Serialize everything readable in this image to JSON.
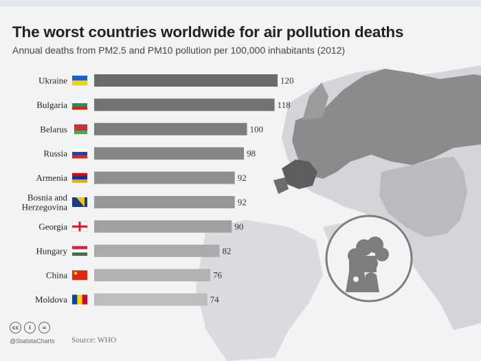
{
  "title": "The worst countries worldwide for air pollution deaths",
  "subtitle": "Annual deaths from PM2.5 and PM10 pollution per 100,000 inhabitants (2012)",
  "footer": {
    "handle": "@StatistaCharts",
    "source": "Source: WHO",
    "license_icons": [
      "cc",
      "i",
      "="
    ]
  },
  "illustration": {
    "icon": "factory-smoke-icon"
  },
  "colors": {
    "bar_darkest": "#6a6a6a",
    "bar_lightest": "#bdbdbd",
    "map_land": "#cfd1d4",
    "map_highlight": "#7a7a7a"
  },
  "chart_data": {
    "type": "bar",
    "orientation": "horizontal",
    "categories": [
      "Ukraine",
      "Bulgaria",
      "Belarus",
      "Russia",
      "Armenia",
      "Bosnia and Herzegovina",
      "Georgia",
      "Hungary",
      "China",
      "Moldova"
    ],
    "category_lines": [
      [
        "Ukraine"
      ],
      [
        "Bulgaria"
      ],
      [
        "Belarus"
      ],
      [
        "Russia"
      ],
      [
        "Armenia"
      ],
      [
        "Bosnia and",
        "Herzegovina"
      ],
      [
        "Georgia"
      ],
      [
        "Hungary"
      ],
      [
        "China"
      ],
      [
        "Moldova"
      ]
    ],
    "flags": [
      "ukraine-flag-icon",
      "bulgaria-flag-icon",
      "belarus-flag-icon",
      "russia-flag-icon",
      "armenia-flag-icon",
      "bosnia-flag-icon",
      "georgia-flag-icon",
      "hungary-flag-icon",
      "china-flag-icon",
      "moldova-flag-icon"
    ],
    "values": [
      120,
      118,
      100,
      98,
      92,
      92,
      90,
      82,
      76,
      74
    ],
    "xlim": [
      0,
      120
    ],
    "grid": false,
    "data_labels": true
  }
}
